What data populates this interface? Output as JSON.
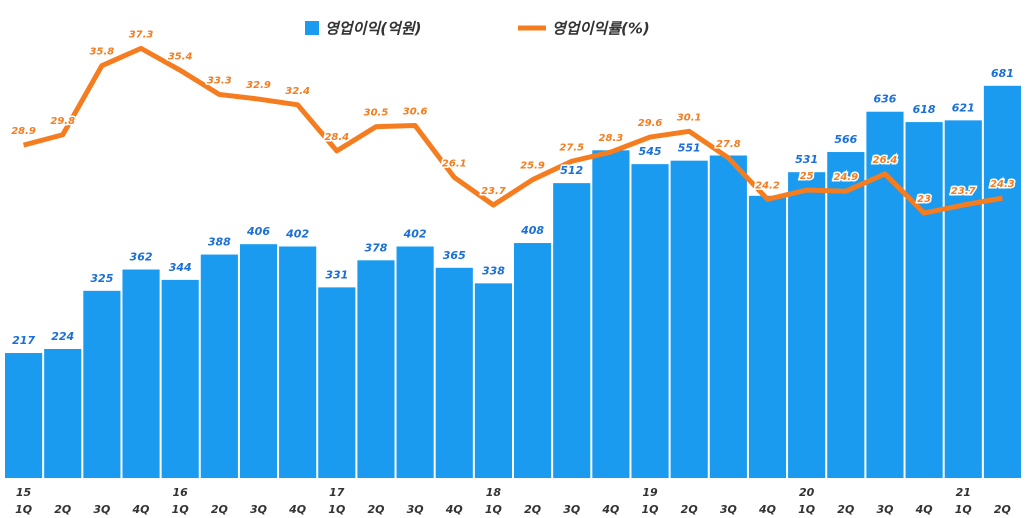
{
  "chart_data": {
    "type": "bar-line",
    "categories": [
      "1Q",
      "2Q",
      "3Q",
      "4Q",
      "1Q",
      "2Q",
      "3Q",
      "4Q",
      "1Q",
      "2Q",
      "3Q",
      "4Q",
      "1Q",
      "2Q",
      "3Q",
      "4Q",
      "1Q",
      "2Q",
      "3Q",
      "4Q",
      "1Q",
      "2Q",
      "3Q",
      "4Q",
      "1Q",
      "2Q"
    ],
    "years": [
      "15",
      null,
      null,
      null,
      "16",
      null,
      null,
      null,
      "17",
      null,
      null,
      null,
      "18",
      null,
      null,
      null,
      "19",
      null,
      null,
      null,
      "20",
      null,
      null,
      null,
      "21",
      null
    ],
    "series": [
      {
        "name": "영업이익(억원)",
        "color": "#1a9bf0",
        "type": "bar",
        "values": [
          217,
          224,
          325,
          362,
          344,
          388,
          406,
          402,
          331,
          378,
          402,
          365,
          338,
          408,
          512,
          569,
          545,
          551,
          560,
          490,
          531,
          566,
          636,
          618,
          621,
          681
        ],
        "value_labels": [
          "217",
          "224",
          "325",
          "362",
          "344",
          "388",
          "406",
          "402",
          "331",
          "378",
          "402",
          "365",
          "338",
          "408",
          "512",
          null,
          "545",
          "551",
          null,
          null,
          "531",
          "566",
          "636",
          "618",
          "621",
          "681"
        ]
      },
      {
        "name": "영업이익률(%)",
        "color": "#f57c1f",
        "type": "line",
        "axis": "y2",
        "values": [
          28.9,
          29.8,
          35.8,
          37.3,
          35.4,
          33.3,
          32.9,
          32.4,
          28.4,
          30.5,
          30.6,
          26.1,
          23.7,
          25.9,
          27.5,
          28.3,
          29.6,
          30.1,
          27.8,
          24.2,
          25.0,
          24.9,
          26.4,
          23.0,
          23.7,
          24.3
        ]
      }
    ],
    "ylim": [
      0,
      830
    ],
    "y2lim": [
      0,
      41.5
    ]
  }
}
